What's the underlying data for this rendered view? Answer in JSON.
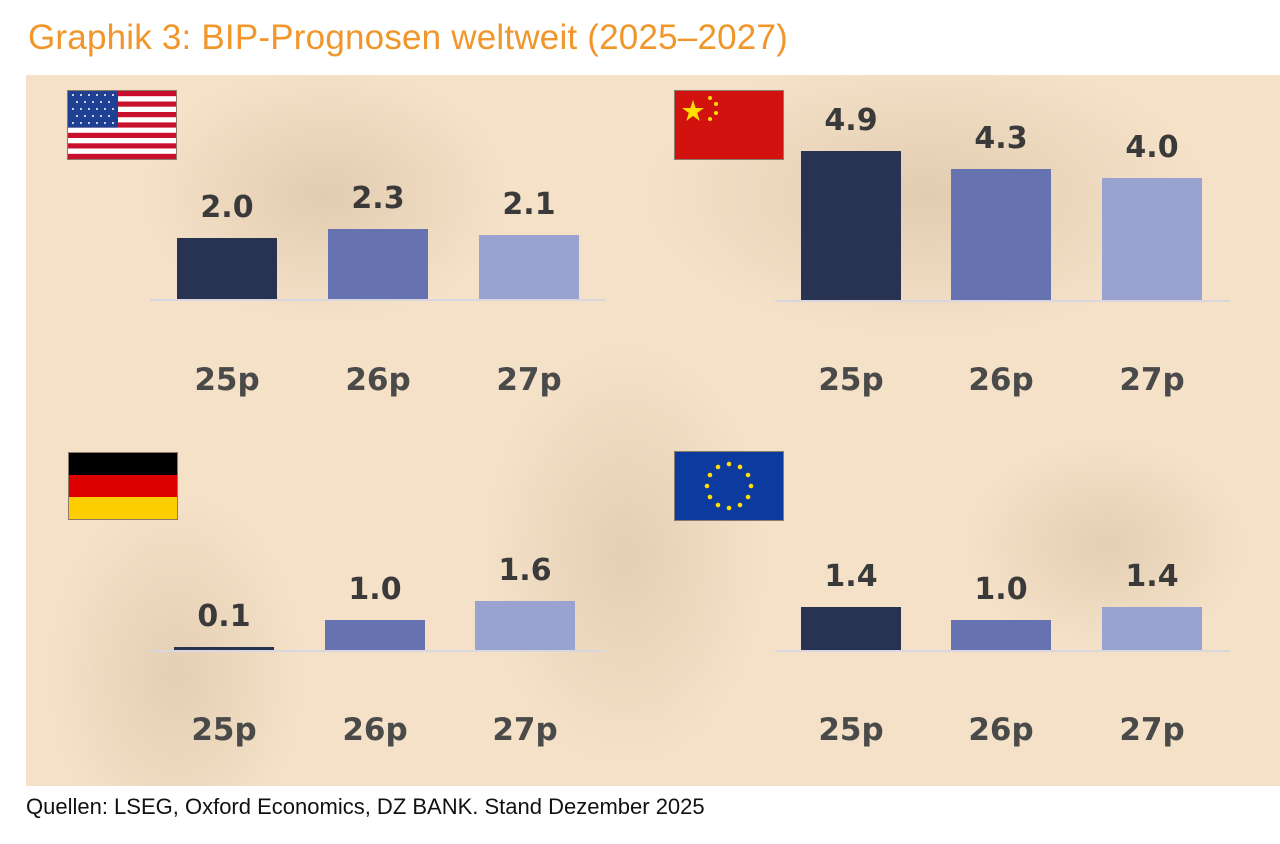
{
  "title": "Graphik 3: BIP-Prognosen weltweit (2025–2027)",
  "footer": "Quellen: LSEG, Oxford Economics, DZ BANK. Stand Dezember 2025",
  "colors": {
    "title": "#f0962a",
    "2025": "#283252",
    "2026": "#6673b0",
    "2027": "#9aa3cf"
  },
  "chart_data": [
    {
      "type": "bar",
      "panel": "USA",
      "flag": "us-flag",
      "categories": [
        "25p",
        "26p",
        "27p"
      ],
      "values": [
        2.0,
        2.3,
        2.1
      ]
    },
    {
      "type": "bar",
      "panel": "China",
      "flag": "china-flag",
      "categories": [
        "25p",
        "26p",
        "27p"
      ],
      "values": [
        4.9,
        4.3,
        4.0
      ]
    },
    {
      "type": "bar",
      "panel": "Deutschland",
      "flag": "germany-flag",
      "categories": [
        "25p",
        "26p",
        "27p"
      ],
      "values": [
        0.1,
        1.0,
        1.6
      ]
    },
    {
      "type": "bar",
      "panel": "Eurozone",
      "flag": "eu-flag",
      "categories": [
        "25p",
        "26p",
        "27p"
      ],
      "values": [
        1.4,
        1.0,
        1.4
      ]
    }
  ]
}
